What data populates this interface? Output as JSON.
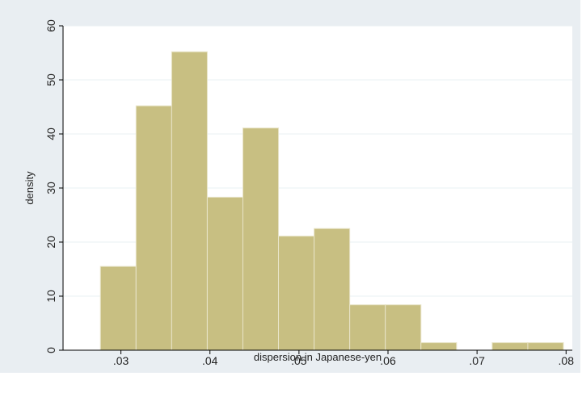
{
  "chart_data": {
    "type": "bar",
    "subtype": "histogram",
    "xlabel": "dispersion in Japanese-yen",
    "ylabel": "density",
    "xlim": [
      0.0235,
      0.0807
    ],
    "ylim": [
      0,
      60
    ],
    "x_ticks": [
      ".03",
      ".04",
      ".05",
      ".06",
      ".07",
      ".08"
    ],
    "x_tick_values": [
      0.03,
      0.04,
      0.05,
      0.06,
      0.07,
      0.08
    ],
    "y_ticks": [
      "0",
      "10",
      "20",
      "30",
      "40",
      "50",
      "60"
    ],
    "y_tick_values": [
      0,
      10,
      20,
      30,
      40,
      50,
      60
    ],
    "grid": true,
    "bar_color": "#c8bf82",
    "bar_edge_color": "#e8e4c8",
    "plot_background": "#ffffff",
    "outer_background": "#e9eef2",
    "bins": [
      {
        "x0": 0.0277,
        "x1": 0.0317,
        "density": 15.5
      },
      {
        "x0": 0.0317,
        "x1": 0.0357,
        "density": 45.2
      },
      {
        "x0": 0.0357,
        "x1": 0.0397,
        "density": 55.2
      },
      {
        "x0": 0.0397,
        "x1": 0.0437,
        "density": 28.3
      },
      {
        "x0": 0.0437,
        "x1": 0.0477,
        "density": 41.1
      },
      {
        "x0": 0.0477,
        "x1": 0.0517,
        "density": 21.1
      },
      {
        "x0": 0.0517,
        "x1": 0.0557,
        "density": 22.5
      },
      {
        "x0": 0.0557,
        "x1": 0.0597,
        "density": 8.4
      },
      {
        "x0": 0.0597,
        "x1": 0.0637,
        "density": 8.4
      },
      {
        "x0": 0.0637,
        "x1": 0.0677,
        "density": 1.4
      },
      {
        "x0": 0.0677,
        "x1": 0.0717,
        "density": 0
      },
      {
        "x0": 0.0717,
        "x1": 0.0757,
        "density": 1.4
      },
      {
        "x0": 0.0757,
        "x1": 0.0797,
        "density": 1.4
      }
    ]
  }
}
